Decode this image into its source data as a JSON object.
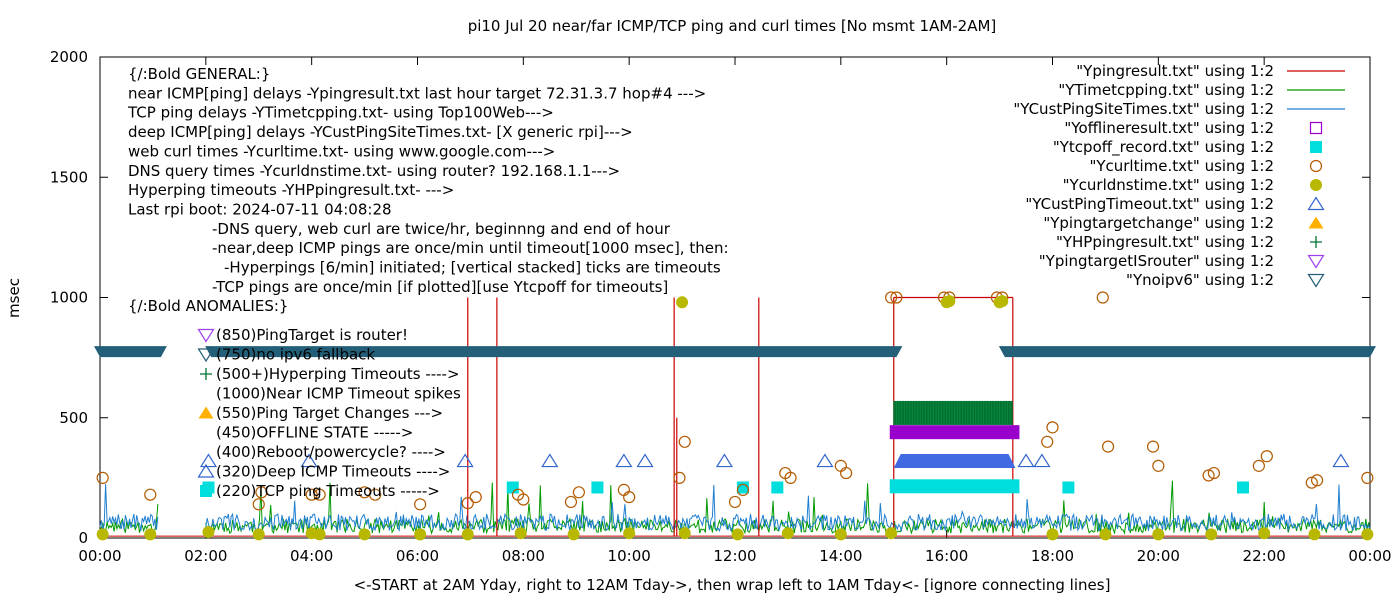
{
  "chart_data": {
    "type": "line",
    "title": "pi10 Jul 20  near/far ICMP/TCP ping and curl times [No msmt 1AM-2AM]",
    "xlabel": "<-START at 2AM Yday, right to 12AM Tday->, then wrap left to 1AM Tday<- [ignore connecting lines]",
    "ylabel": "msec",
    "xlim": [
      0,
      24
    ],
    "ylim": [
      0,
      2000
    ],
    "x_unit": "hour of day",
    "xticks": [
      "00:00",
      "02:00",
      "04:00",
      "06:00",
      "08:00",
      "10:00",
      "12:00",
      "14:00",
      "16:00",
      "18:00",
      "20:00",
      "22:00",
      "00:00"
    ],
    "yticks": [
      "0",
      "500",
      "1000",
      "1500",
      "2000"
    ],
    "legend_position": "top-right",
    "colors": {
      "ypingresult": "#cc0000",
      "ytimetcpping": "#009900",
      "ycustping": "#1f7fd0",
      "yoffline": "#9900cc",
      "ytcpoff": "#00dddd",
      "ycurltime": "#b35a00",
      "ycurldns": "#b8b800",
      "ycustpingtimeout": "#3366cc",
      "ypingtargetchange": "#ffb000",
      "yhpping": "#007030",
      "ypingtargetisrouter": "#a040f0",
      "ynoipv6": "#235f78"
    },
    "legend": [
      {
        "label": "\"Ypingresult.txt\" using 1:2",
        "key": "ypingresult",
        "symbol": "line"
      },
      {
        "label": "\"YTimetcpping.txt\" using 1:2",
        "key": "ytimetcpping",
        "symbol": "line"
      },
      {
        "label": "\"YCustPingSiteTimes.txt\" using 1:2",
        "key": "ycustping",
        "symbol": "line"
      },
      {
        "label": "\"Yofflineresult.txt\" using 1:2",
        "key": "yoffline",
        "symbol": "open-square"
      },
      {
        "label": "\"Ytcpoff_record.txt\" using 1:2",
        "key": "ytcpoff",
        "symbol": "filled-square"
      },
      {
        "label": "\"Ycurltime.txt\" using 1:2",
        "key": "ycurltime",
        "symbol": "open-circle"
      },
      {
        "label": "\"Ycurldnstime.txt\" using 1:2",
        "key": "ycurldns",
        "symbol": "filled-circle"
      },
      {
        "label": "\"YCustPingTimeout.txt\" using 1:2",
        "key": "ycustpingtimeout",
        "symbol": "open-triangle"
      },
      {
        "label": "\"Ypingtargetchange\" using 1:2",
        "key": "ypingtargetchange",
        "symbol": "filled-triangle"
      },
      {
        "label": "\"YHPpingresult.txt\" using 1:2",
        "key": "yhpping",
        "symbol": "plus"
      },
      {
        "label": "\"YpingtargetISrouter\" using 1:2",
        "key": "ypingtargetisrouter",
        "symbol": "open-inv-triangle"
      },
      {
        "label": "\"Ynoipv6\" using 1:2",
        "key": "ynoipv6",
        "symbol": "open-inv-triangle"
      }
    ],
    "annotations": [
      {
        "text": "{/:Bold GENERAL:}",
        "col": 0
      },
      {
        "text": "near ICMP[ping] delays -Ypingresult.txt last hour target 72.31.3.7 hop#4 --->",
        "col": 0
      },
      {
        "text": "TCP ping delays -YTimetcpping.txt- using Top100Web--->",
        "col": 0
      },
      {
        "text": "deep ICMP[ping] delays -YCustPingSiteTimes.txt- [X generic rpi]--->",
        "col": 0
      },
      {
        "text": "web curl times -Ycurltime.txt- using www.google.com--->",
        "col": 0
      },
      {
        "text": "DNS query times -Ycurldnstime.txt- using router? 192.168.1.1--->",
        "col": 0
      },
      {
        "text": "Hyperping timeouts -YHPpingresult.txt- --->",
        "col": 0
      },
      {
        "text": "Last rpi boot: 2024-07-11 04:08:28",
        "col": 0
      },
      {
        "text": "-DNS query, web curl are twice/hr, beginnng and end of hour",
        "col": 1
      },
      {
        "text": "-near,deep ICMP pings are once/min until timeout[1000 msec], then:",
        "col": 1
      },
      {
        "text": "-Hyperpings [6/min] initiated; [vertical stacked] ticks are timeouts",
        "col": 2
      },
      {
        "text": "-TCP pings are once/min [if plotted][use Ytcpoff for timeouts]",
        "col": 1
      },
      {
        "text": "{/:Bold ANOMALIES:}",
        "col": 0
      }
    ],
    "anomalies": [
      {
        "text": "(850)PingTarget is router!",
        "key": "ypingtargetisrouter",
        "symbol": "open-inv-triangle"
      },
      {
        "text": "(750)no ipv6 fallback",
        "key": "ynoipv6",
        "symbol": "open-inv-triangle"
      },
      {
        "text": "(500+)Hyperping Timeouts ---->",
        "key": "yhpping",
        "symbol": "plus"
      },
      {
        "text": "(1000)Near ICMP Timeout spikes",
        "key": "",
        "symbol": "none"
      },
      {
        "text": "(550)Ping Target Changes --->",
        "key": "ypingtargetchange",
        "symbol": "filled-triangle"
      },
      {
        "text": "(450)OFFLINE STATE ----->",
        "key": "",
        "symbol": "none"
      },
      {
        "text": "(400)Reboot/powercycle? ---->",
        "key": "",
        "symbol": "none"
      },
      {
        "text": "(320)Deep ICMP Timeouts ---->",
        "key": "ycustpingtimeout",
        "symbol": "open-triangle"
      },
      {
        "text": "(220)TCP ping Timeouts ----->",
        "key": "ytcpoff",
        "symbol": "filled-square"
      }
    ],
    "series": [
      {
        "name": "Ypingresult.txt",
        "key": "ypingresult",
        "kind": "spikes",
        "baseline": 8,
        "spikes": [
          [
            6.95,
            1000
          ],
          [
            7.5,
            1000
          ],
          [
            10.85,
            1000
          ],
          [
            10.9,
            500
          ],
          [
            12.45,
            1000
          ],
          [
            15.0,
            1000
          ],
          [
            17.25,
            1000
          ]
        ],
        "square": {
          "x0": 15.0,
          "x1": 17.25,
          "y": 1000
        }
      },
      {
        "name": "YTimetcpping.txt",
        "key": "ytimetcpping",
        "kind": "noise",
        "base": 20,
        "amp": 60,
        "peak": 220,
        "seed": 11
      },
      {
        "name": "YCustPingSiteTimes.txt",
        "key": "ycustping",
        "kind": "noise",
        "base": 30,
        "amp": 70,
        "peak": 200,
        "seed": 7
      },
      {
        "name": "Ynoipv6",
        "key": "ynoipv6",
        "kind": "band",
        "y": 775,
        "segments": [
          [
            0,
            1.15
          ],
          [
            2.1,
            15.05
          ],
          [
            17.1,
            24
          ]
        ]
      },
      {
        "name": "YHPpingresult.txt",
        "key": "yhpping",
        "kind": "band",
        "y": 520,
        "segments": [
          [
            15.0,
            17.25
          ]
        ]
      },
      {
        "name": "Yofflineresult.txt",
        "key": "yoffline",
        "kind": "band",
        "y": 440,
        "segments": [
          [
            15.0,
            17.3
          ]
        ]
      },
      {
        "name": "YCustPingTimeout.txt band",
        "key": "ycustpingtimeout",
        "kind": "band",
        "y": 320,
        "segments": [
          [
            15.0,
            17.3
          ]
        ]
      },
      {
        "name": "Ytcpoff_record.txt band",
        "key": "ytcpoff",
        "kind": "band",
        "y": 215,
        "segments": [
          [
            15.0,
            17.3
          ]
        ]
      },
      {
        "name": "YCustPingTimeout.txt",
        "key": "ycustpingtimeout",
        "kind": "markers",
        "symbol": "open-triangle",
        "points": [
          [
            2.05,
            320
          ],
          [
            3.95,
            320
          ],
          [
            6.9,
            320
          ],
          [
            8.5,
            320
          ],
          [
            9.9,
            320
          ],
          [
            10.3,
            320
          ],
          [
            11.8,
            320
          ],
          [
            13.7,
            320
          ],
          [
            17.5,
            320
          ],
          [
            17.8,
            320
          ],
          [
            23.45,
            320
          ]
        ]
      },
      {
        "name": "Ytcpoff_record.txt",
        "key": "ytcpoff",
        "kind": "markers",
        "symbol": "filled-square",
        "points": [
          [
            2.05,
            210
          ],
          [
            7.8,
            210
          ],
          [
            9.4,
            210
          ],
          [
            12.15,
            210
          ],
          [
            12.8,
            210
          ],
          [
            18.3,
            210
          ],
          [
            21.6,
            210
          ]
        ]
      },
      {
        "name": "Ycurltime.txt",
        "key": "ycurltime",
        "kind": "markers",
        "symbol": "open-circle",
        "points": [
          [
            0.05,
            250
          ],
          [
            0.95,
            180
          ],
          [
            3.0,
            140
          ],
          [
            3.05,
            190
          ],
          [
            4.0,
            180
          ],
          [
            4.15,
            180
          ],
          [
            5.0,
            190
          ],
          [
            5.2,
            180
          ],
          [
            6.05,
            140
          ],
          [
            6.95,
            145
          ],
          [
            7.1,
            170
          ],
          [
            7.9,
            180
          ],
          [
            8.0,
            160
          ],
          [
            8.9,
            150
          ],
          [
            9.05,
            190
          ],
          [
            9.9,
            200
          ],
          [
            10.0,
            170
          ],
          [
            10.95,
            250
          ],
          [
            11.05,
            400
          ],
          [
            12.0,
            150
          ],
          [
            12.15,
            200
          ],
          [
            12.95,
            270
          ],
          [
            13.05,
            250
          ],
          [
            14.0,
            300
          ],
          [
            14.1,
            270
          ],
          [
            14.95,
            1000
          ],
          [
            15.05,
            1000
          ],
          [
            15.95,
            1000
          ],
          [
            16.05,
            1000
          ],
          [
            16.95,
            1000
          ],
          [
            17.05,
            1000
          ],
          [
            17.9,
            400
          ],
          [
            18.0,
            460
          ],
          [
            18.95,
            1000
          ],
          [
            19.05,
            380
          ],
          [
            19.9,
            380
          ],
          [
            20.0,
            300
          ],
          [
            20.95,
            260
          ],
          [
            21.05,
            270
          ],
          [
            21.9,
            300
          ],
          [
            22.05,
            340
          ],
          [
            22.9,
            230
          ],
          [
            23.0,
            240
          ],
          [
            23.95,
            250
          ]
        ]
      },
      {
        "name": "Ycurldnstime.txt",
        "key": "ycurldns",
        "kind": "markers",
        "symbol": "filled-circle",
        "points": [
          [
            0.05,
            15
          ],
          [
            0.95,
            15
          ],
          [
            2.05,
            25
          ],
          [
            3.0,
            15
          ],
          [
            4.0,
            20
          ],
          [
            4.15,
            15
          ],
          [
            5.0,
            15
          ],
          [
            6.05,
            15
          ],
          [
            6.95,
            15
          ],
          [
            7.95,
            20
          ],
          [
            8.95,
            15
          ],
          [
            10.0,
            20
          ],
          [
            11.0,
            980
          ],
          [
            11.05,
            20
          ],
          [
            12.05,
            15
          ],
          [
            13.0,
            20
          ],
          [
            14.0,
            15
          ],
          [
            14.95,
            20
          ],
          [
            16.0,
            980
          ],
          [
            16.05,
            985
          ],
          [
            17.0,
            980
          ],
          [
            17.05,
            985
          ],
          [
            18.0,
            15
          ],
          [
            19.0,
            15
          ],
          [
            20.0,
            15
          ],
          [
            21.0,
            15
          ],
          [
            22.0,
            20
          ],
          [
            22.95,
            15
          ],
          [
            23.95,
            15
          ]
        ]
      },
      {
        "name": "YpingtargetISrouter",
        "key": "ypingtargetisrouter",
        "kind": "markers",
        "symbol": "open-inv-triangle",
        "points": []
      },
      {
        "name": "Ypingtargetchange",
        "key": "ypingtargetchange",
        "kind": "markers",
        "symbol": "filled-triangle",
        "points": []
      }
    ]
  }
}
